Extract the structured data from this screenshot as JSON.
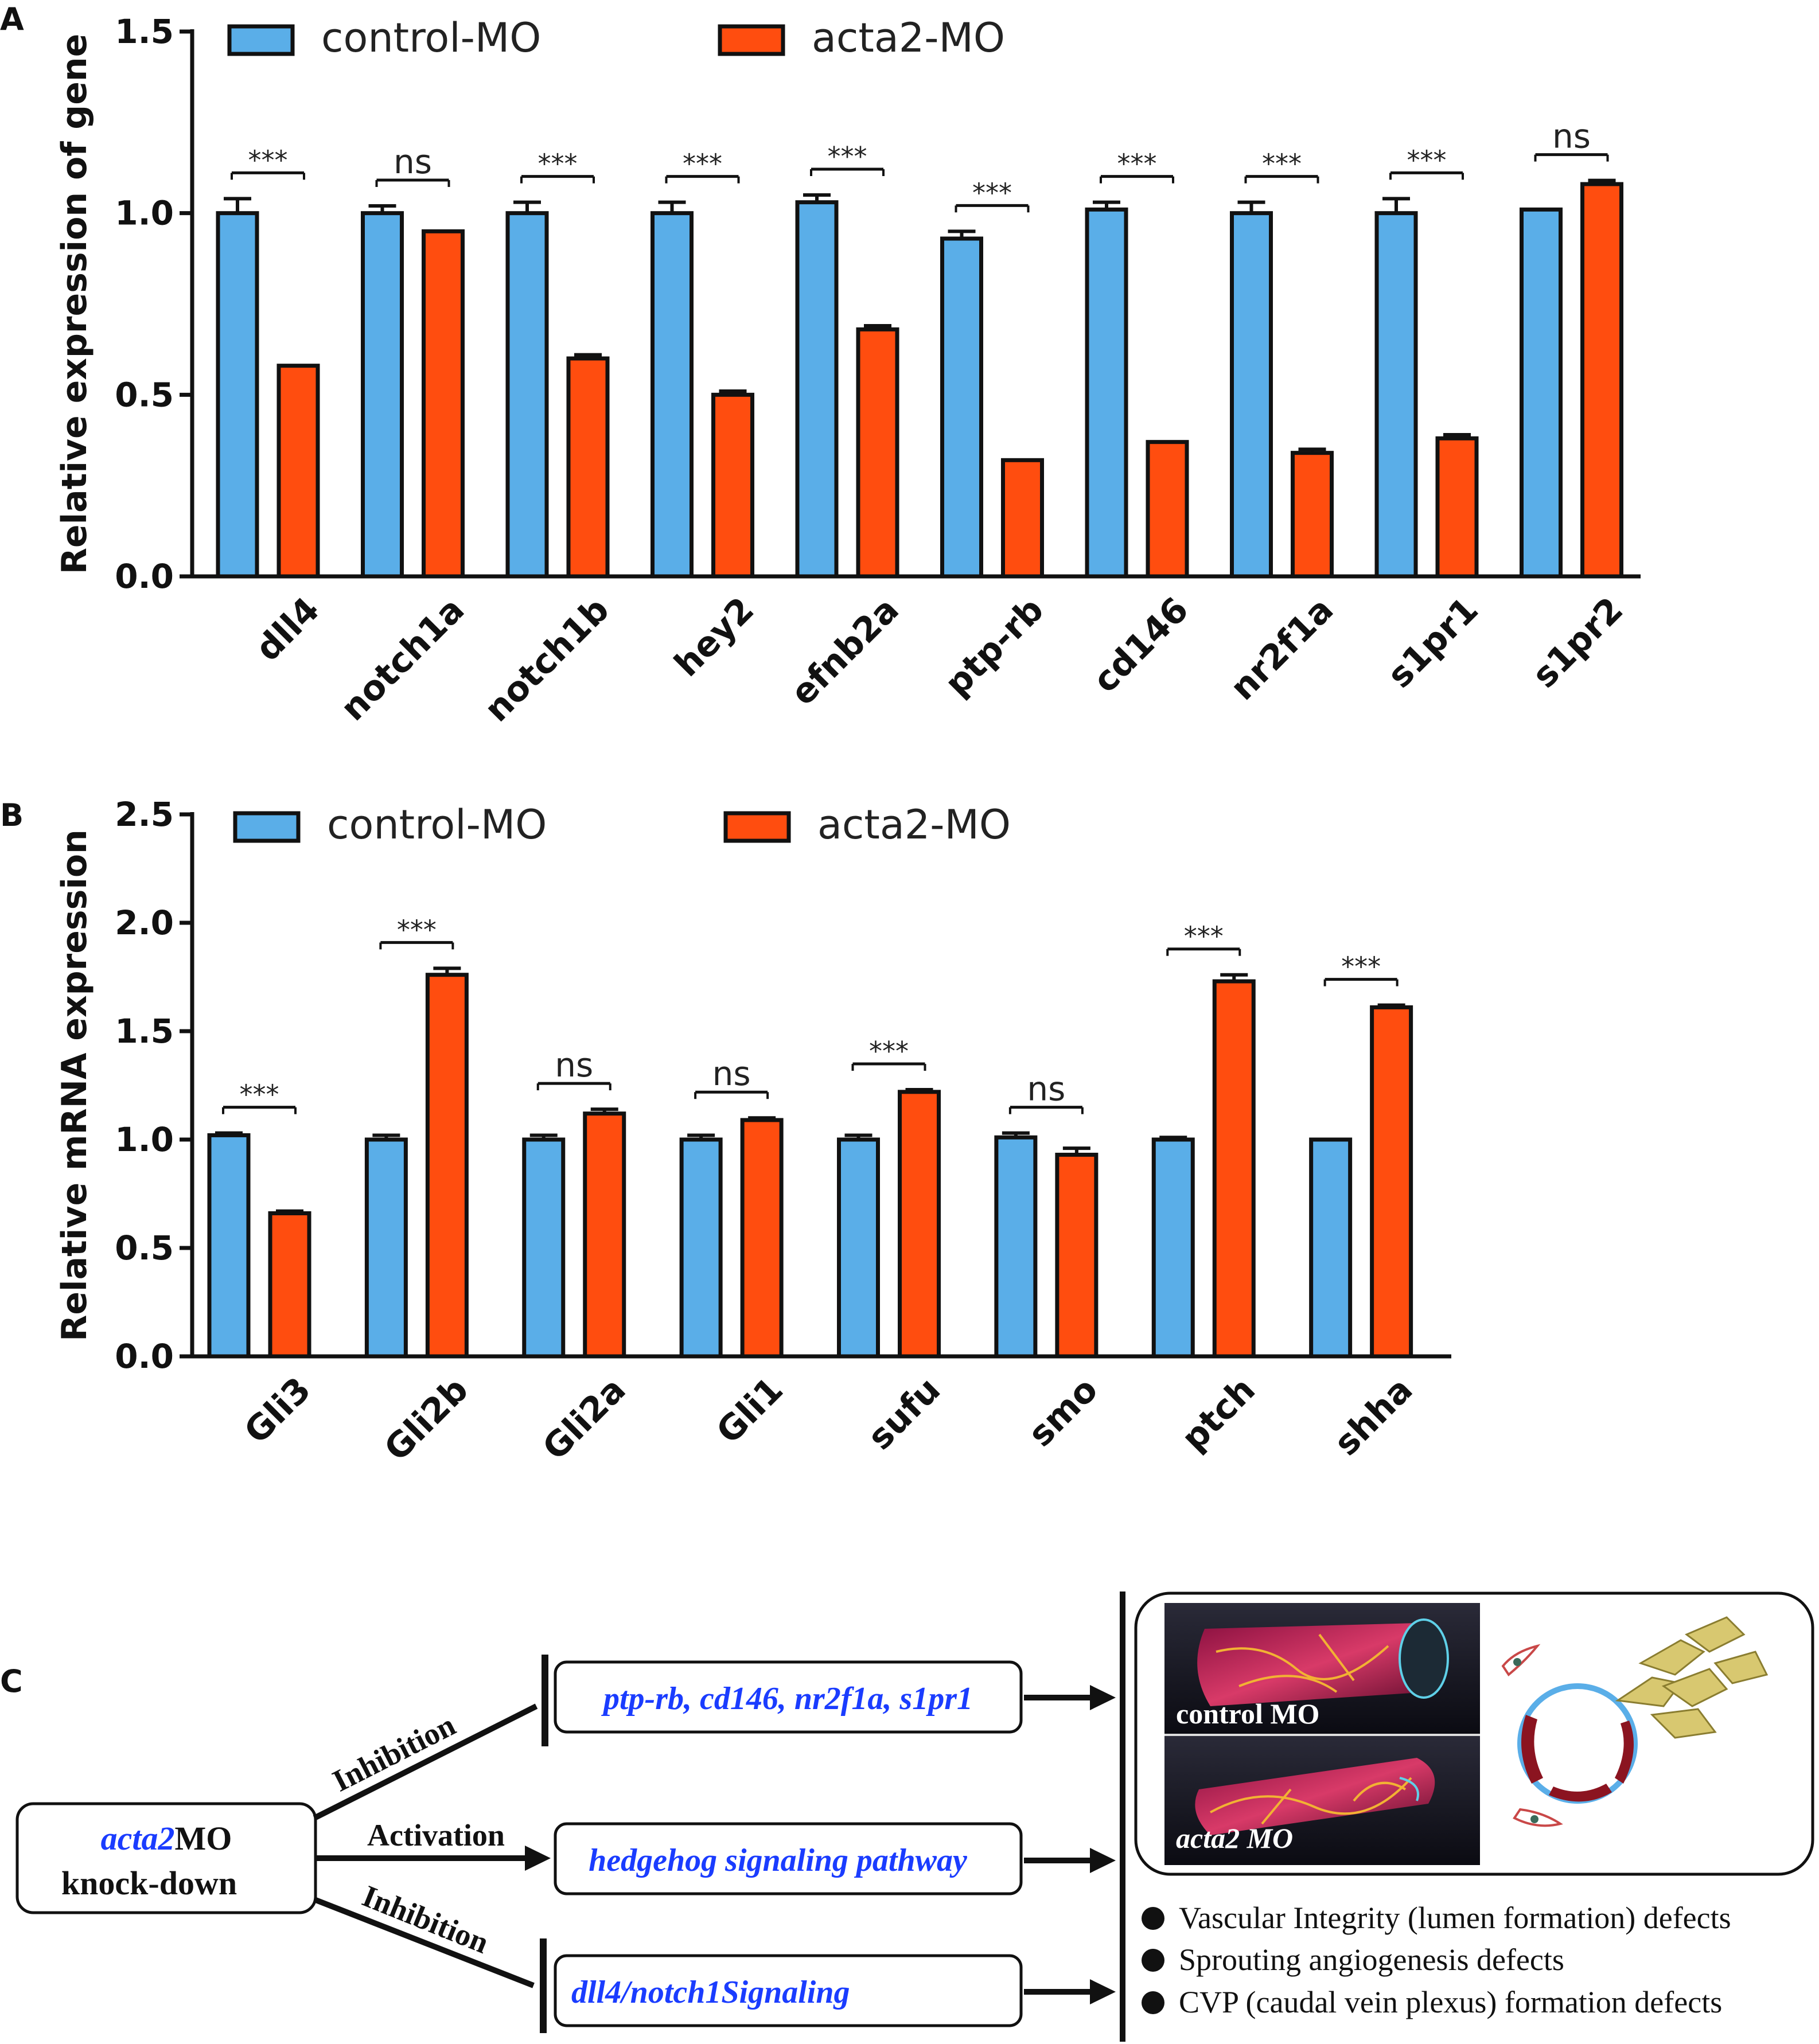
{
  "panel_labels": {
    "a": "A",
    "b": "B",
    "c": "C"
  },
  "colors": {
    "control": "#5aaee8",
    "acta2": "#ff4d0f",
    "axis": "#111111",
    "text_blue": "#1a3cff"
  },
  "chart_data": [
    {
      "type": "bar",
      "panel": "A",
      "ylabel": "Relative expression of gene",
      "ylim": [
        0,
        1.5
      ],
      "yticks": [
        "0.0",
        "0.5",
        "1.0",
        "1.5"
      ],
      "ytick_values": [
        0,
        0.5,
        1.0,
        1.5
      ],
      "categories": [
        "dll4",
        "notch1a",
        "notch1b",
        "hey2",
        "efnb2a",
        "ptp-rb",
        "cd146",
        "nr2f1a",
        "s1pr1",
        "s1pr2"
      ],
      "series": [
        {
          "name": "control-MO",
          "values": [
            1.0,
            1.0,
            1.0,
            1.0,
            1.03,
            0.93,
            1.01,
            1.0,
            1.0,
            1.01
          ],
          "errors": [
            0.04,
            0.02,
            0.03,
            0.03,
            0.02,
            0.02,
            0.02,
            0.03,
            0.04,
            0.0
          ]
        },
        {
          "name": "acta2-MO",
          "values": [
            0.58,
            0.95,
            0.6,
            0.5,
            0.68,
            0.32,
            0.37,
            0.34,
            0.38,
            1.08
          ],
          "errors": [
            0.0,
            0.0,
            0.01,
            0.01,
            0.01,
            0.0,
            0.0,
            0.01,
            0.01,
            0.01
          ]
        }
      ],
      "significance": [
        "***",
        "ns",
        "***",
        "***",
        "***",
        "***",
        "***",
        "***",
        "***",
        "ns"
      ],
      "legend": [
        "control-MO",
        "acta2-MO"
      ]
    },
    {
      "type": "bar",
      "panel": "B",
      "ylabel": "Relative mRNA expression",
      "ylim": [
        0,
        2.5
      ],
      "yticks": [
        "0.0",
        "0.5",
        "1.0",
        "1.5",
        "2.0",
        "2.5"
      ],
      "ytick_values": [
        0,
        0.5,
        1.0,
        1.5,
        2.0,
        2.5
      ],
      "categories": [
        "Gli3",
        "Gli2b",
        "Gli2a",
        "Gli1",
        "sufu",
        "smo",
        "ptch",
        "shha"
      ],
      "series": [
        {
          "name": "control-MO",
          "values": [
            1.02,
            1.0,
            1.0,
            1.0,
            1.0,
            1.01,
            1.0,
            1.0
          ],
          "errors": [
            0.01,
            0.02,
            0.02,
            0.02,
            0.02,
            0.02,
            0.01,
            0.0
          ]
        },
        {
          "name": "acta2-MO",
          "values": [
            0.66,
            1.76,
            1.12,
            1.09,
            1.22,
            0.93,
            1.73,
            1.61
          ],
          "errors": [
            0.01,
            0.03,
            0.02,
            0.01,
            0.01,
            0.03,
            0.03,
            0.01
          ]
        }
      ],
      "significance": [
        "***",
        "***",
        "ns",
        "ns",
        "***",
        "ns",
        "***",
        "***"
      ],
      "legend": [
        "control-MO",
        "acta2-MO"
      ]
    }
  ],
  "diagram": {
    "source_name": "acta2",
    "source_suffix": "MO",
    "source_line2": "knock-down",
    "edge_top": "Inhibition",
    "edge_mid": "Activation",
    "edge_bot": "Inhibition",
    "target_top": "ptp-rb, cd146, nr2f1a, s1pr1",
    "target_mid": "hedgehog signaling pathway",
    "target_bot": "dll4/notch1Signaling",
    "image_top_label": "control MO",
    "image_bot_label": "acta2 MO",
    "outcomes": [
      "Vascular Integrity (lumen formation) defects",
      "Sprouting angiogenesis defects",
      "CVP (caudal vein plexus) formation defects"
    ]
  }
}
